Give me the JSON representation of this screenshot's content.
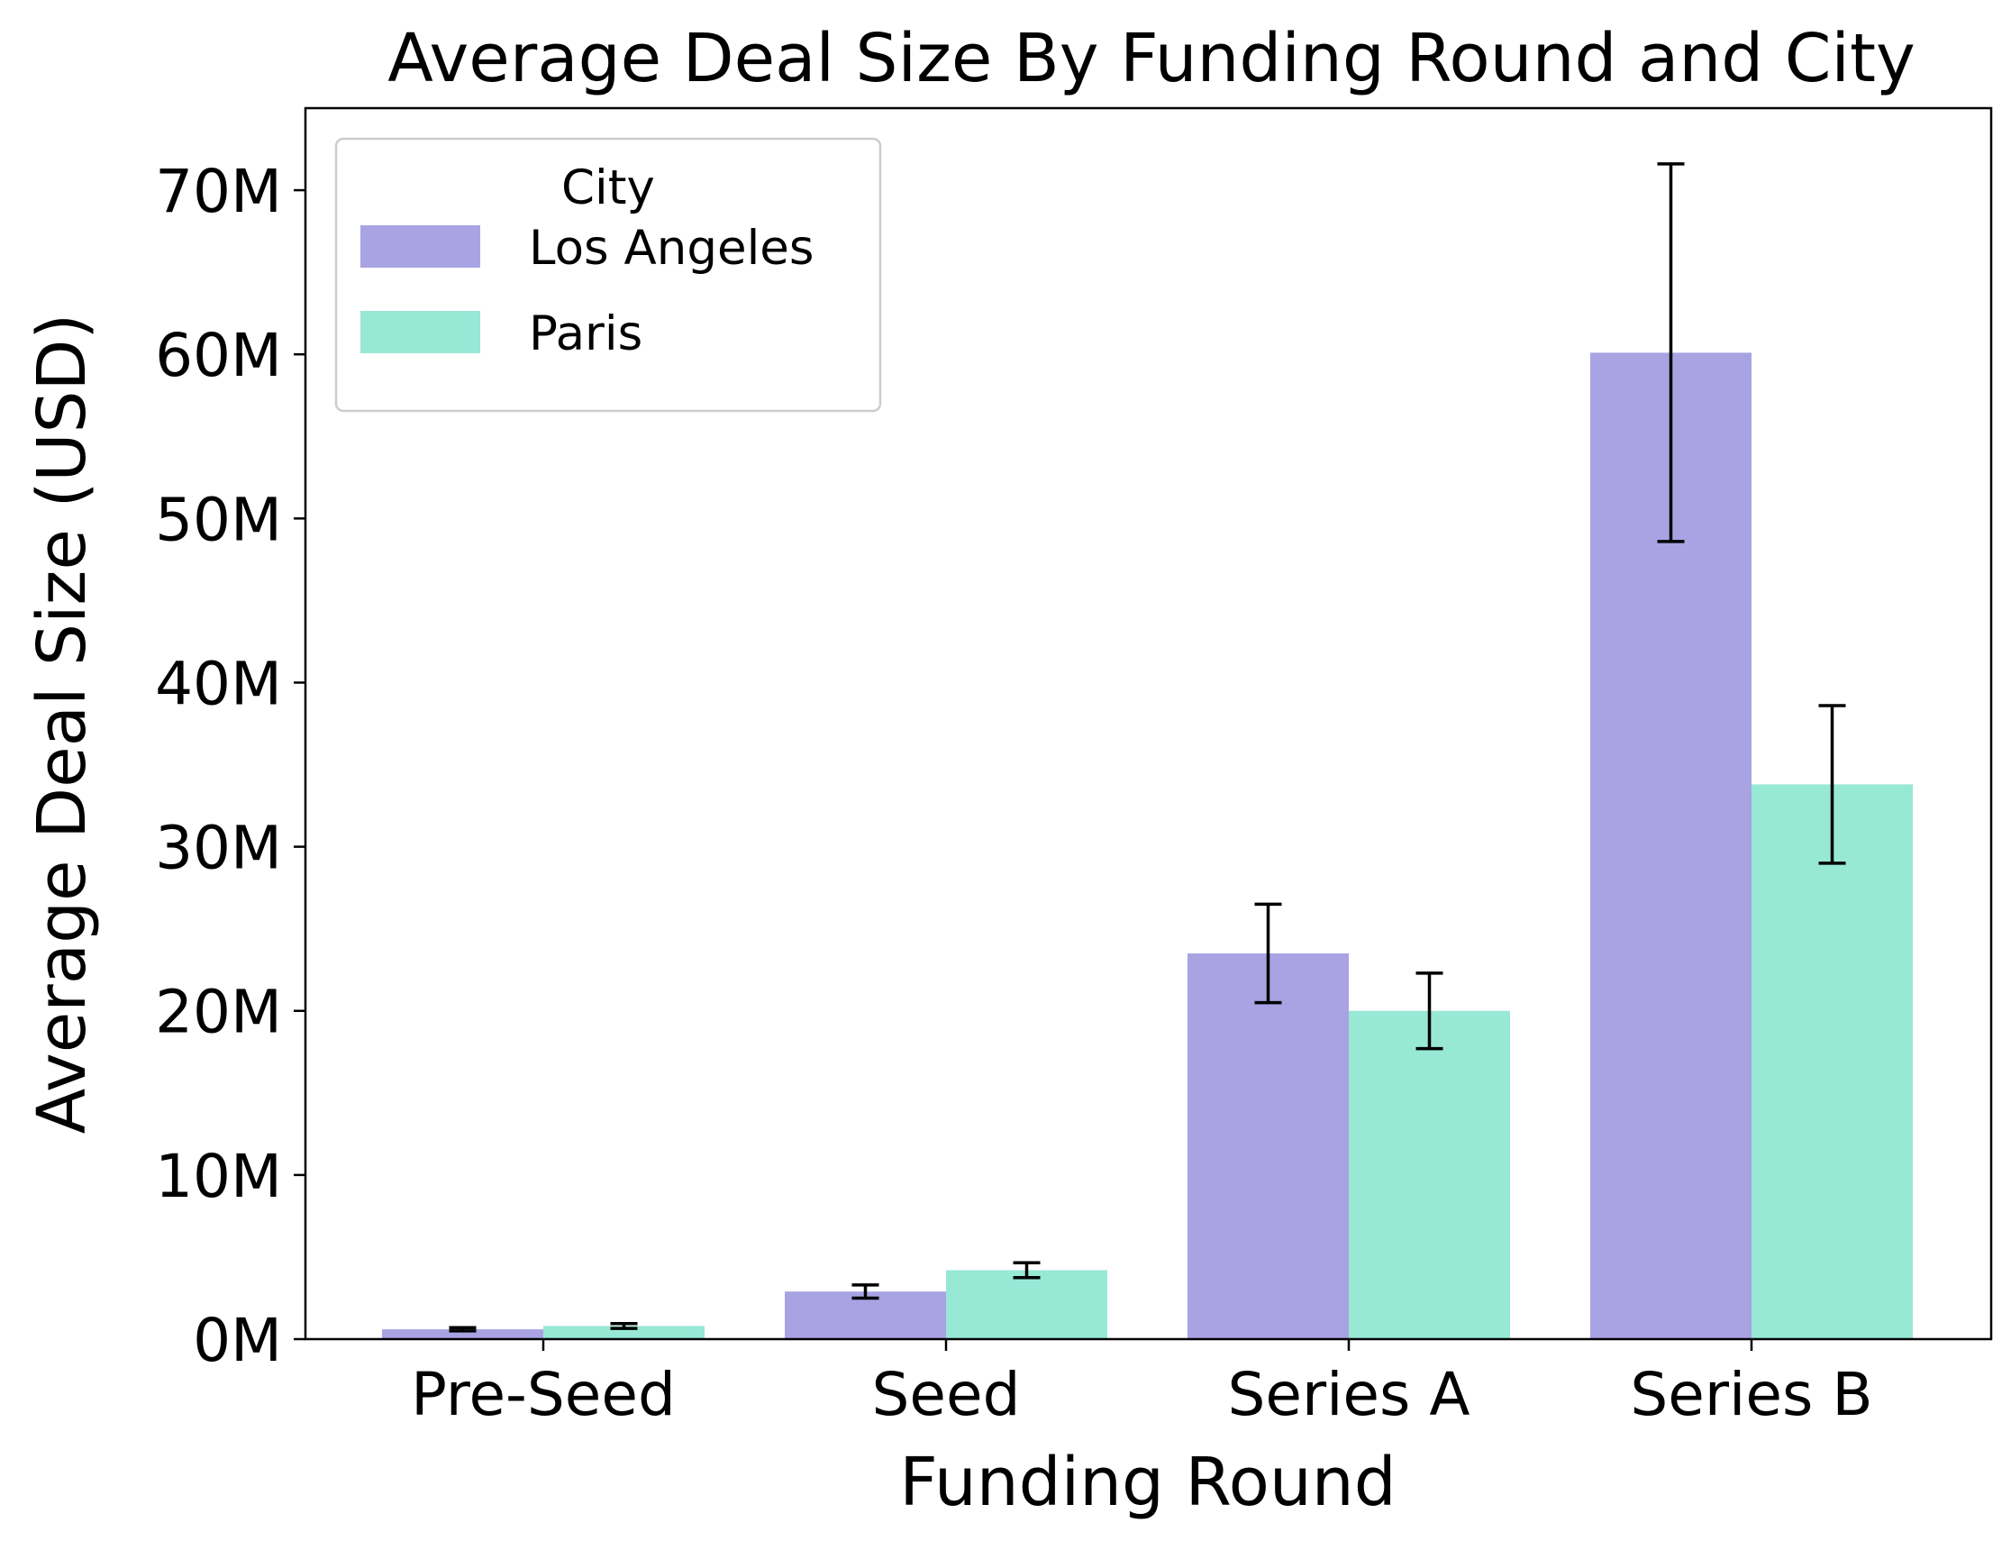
{
  "chart_data": {
    "type": "bar",
    "title": "Average Deal Size By Funding Round and City",
    "xlabel": "Funding Round",
    "ylabel": "Average Deal Size (USD)",
    "categories": [
      "Pre-Seed",
      "Seed",
      "Series A",
      "Series B"
    ],
    "ylim": [
      0,
      75000000
    ],
    "yticks": [
      0,
      10000000,
      20000000,
      30000000,
      40000000,
      50000000,
      60000000,
      70000000
    ],
    "ytick_labels": [
      "0M",
      "10M",
      "20M",
      "30M",
      "40M",
      "50M",
      "60M",
      "70M"
    ],
    "legend": {
      "title": "City",
      "placement": "top-left"
    },
    "grid": false,
    "series": [
      {
        "name": "Los Angeles",
        "color": "#a9a3e3",
        "values": [
          600000,
          2900000,
          23500000,
          60100000
        ],
        "error": [
          100000,
          400000,
          3000000,
          11500000
        ]
      },
      {
        "name": "Paris",
        "color": "#98e8d6",
        "values": [
          800000,
          4200000,
          20000000,
          33800000
        ],
        "error": [
          150000,
          450000,
          2300000,
          4800000
        ]
      }
    ]
  }
}
